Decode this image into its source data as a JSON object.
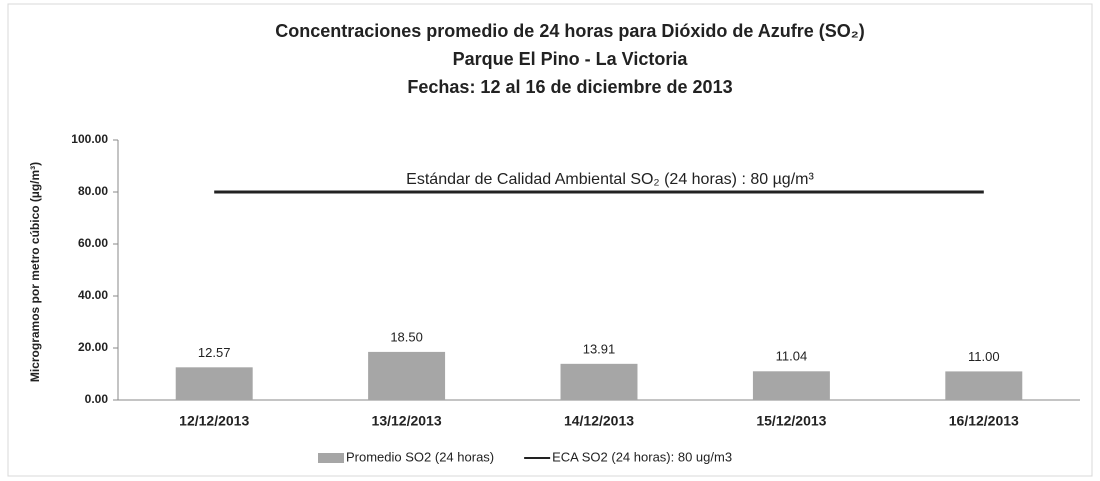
{
  "chart_data": {
    "type": "bar",
    "title": [
      "Concentraciones promedio de 24 horas para Dióxido de Azufre (SO₂)",
      "Parque El Pino -  La Victoria",
      "Fechas: 12 al 16 de diciembre de 2013"
    ],
    "ylabel": "Microgramos por metro cúbico (µg/m³)",
    "annotation": "Estándar de Calidad Ambiental SO₂ (24 horas) : 80 µg/m³",
    "categories": [
      "12/12/2013",
      "13/12/2013",
      "14/12/2013",
      "15/12/2013",
      "16/12/2013"
    ],
    "series": [
      {
        "name": "Promedio SO2 (24 horas)",
        "type": "bar",
        "color": "#a6a6a6",
        "values": [
          12.57,
          18.5,
          13.91,
          11.04,
          11.0
        ],
        "value_labels": [
          "12.57",
          "18.50",
          "13.91",
          "11.04",
          "11.00"
        ]
      },
      {
        "name": "ECA SO2 (24 horas): 80 ug/m3",
        "type": "line",
        "color": "#222222",
        "values": [
          80,
          80,
          80,
          80,
          80
        ]
      }
    ],
    "ylim": [
      0,
      100
    ],
    "yticks": [
      {
        "value": 0,
        "label": "0.00"
      },
      {
        "value": 20,
        "label": "20.00"
      },
      {
        "value": 40,
        "label": "40.00"
      },
      {
        "value": 60,
        "label": "60.00"
      },
      {
        "value": 80,
        "label": "80.00"
      },
      {
        "value": 100,
        "label": "100.00"
      }
    ],
    "grid": false,
    "legend": "bottom"
  }
}
